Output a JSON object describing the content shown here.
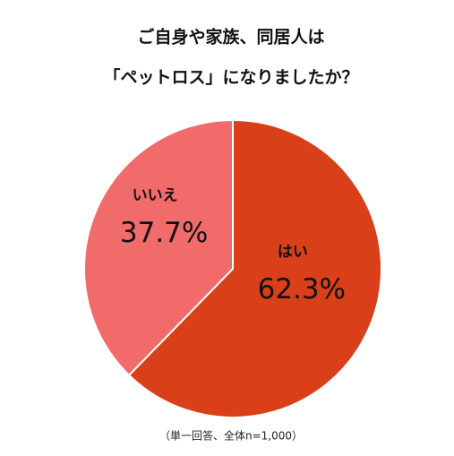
{
  "chart_data": {
    "type": "pie",
    "title": [
      "ご自身や家族、同居人は",
      "「ペットロス」になりましたか？"
    ],
    "categories": [
      "はい",
      "いいえ"
    ],
    "values": [
      62.3,
      37.7
    ],
    "value_labels": [
      "62.3%",
      "37.7%"
    ],
    "colors": [
      "#d9401a",
      "#f26b6b"
    ],
    "note": "（単一回答、全体n=1,000）"
  }
}
